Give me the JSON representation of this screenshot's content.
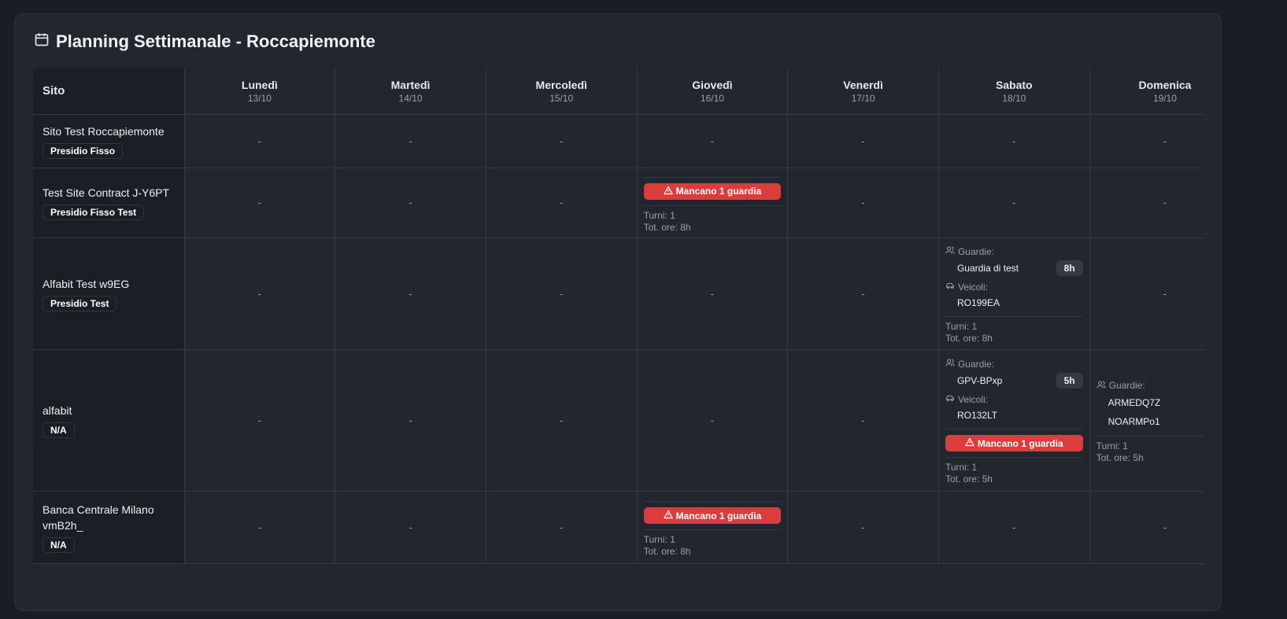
{
  "title": "Planning Settimanale - Roccapiemonte",
  "header": {
    "site_label": "Sito",
    "days": [
      {
        "name": "Lunedì",
        "date": "13/10"
      },
      {
        "name": "Martedì",
        "date": "14/10"
      },
      {
        "name": "Mercoledì",
        "date": "15/10"
      },
      {
        "name": "Giovedì",
        "date": "16/10"
      },
      {
        "name": "Venerdì",
        "date": "17/10"
      },
      {
        "name": "Sabato",
        "date": "18/10"
      },
      {
        "name": "Domenica",
        "date": "19/10"
      }
    ]
  },
  "labels": {
    "empty": "-",
    "guards": "Guardie:",
    "vehicles": "Veicoli:",
    "turni": "Turni: ",
    "ore": "Tot. ore: "
  },
  "rows": [
    {
      "site": "Sito Test Roccapiemonte",
      "type": "Presidio Fisso",
      "cells": [
        null,
        null,
        null,
        null,
        null,
        null,
        null
      ]
    },
    {
      "site": "Test Site Contract J-Y6PT",
      "type": "Presidio Fisso Test",
      "cells": [
        null,
        null,
        null,
        {
          "alert": "Mancano 1 guardia",
          "turni": "1",
          "ore": "8h"
        },
        null,
        null,
        null
      ]
    },
    {
      "site": "Alfabit Test w9EG",
      "type": "Presidio Test",
      "cells": [
        null,
        null,
        null,
        null,
        null,
        {
          "guards": [
            {
              "name": "Guardia di test",
              "hours": "8h"
            }
          ],
          "vehicles": [
            "RO199EA"
          ],
          "turni": "1",
          "ore": "8h"
        },
        null
      ]
    },
    {
      "site": "alfabit",
      "type": "N/A",
      "cells": [
        null,
        null,
        null,
        null,
        null,
        {
          "guards": [
            {
              "name": "GPV-BPxp",
              "hours": "5h"
            }
          ],
          "vehicles": [
            "RO132LT"
          ],
          "alert": "Mancano 1 guardia",
          "turni": "1",
          "ore": "5h"
        },
        {
          "guards": [
            {
              "name": "ARMEDQ7Z"
            },
            {
              "name": "NOARMPo1"
            }
          ],
          "turni": "1",
          "ore": "5h"
        }
      ]
    },
    {
      "site": "Banca Centrale Milano vmB2h_",
      "type": "N/A",
      "cells": [
        null,
        null,
        null,
        {
          "alert": "Mancano 1 guardia",
          "turni": "1",
          "ore": "8h"
        },
        null,
        null,
        null
      ]
    }
  ],
  "colors": {
    "alert": "#dc3c3c",
    "background": "#1a1d24",
    "card": "#22262e"
  }
}
